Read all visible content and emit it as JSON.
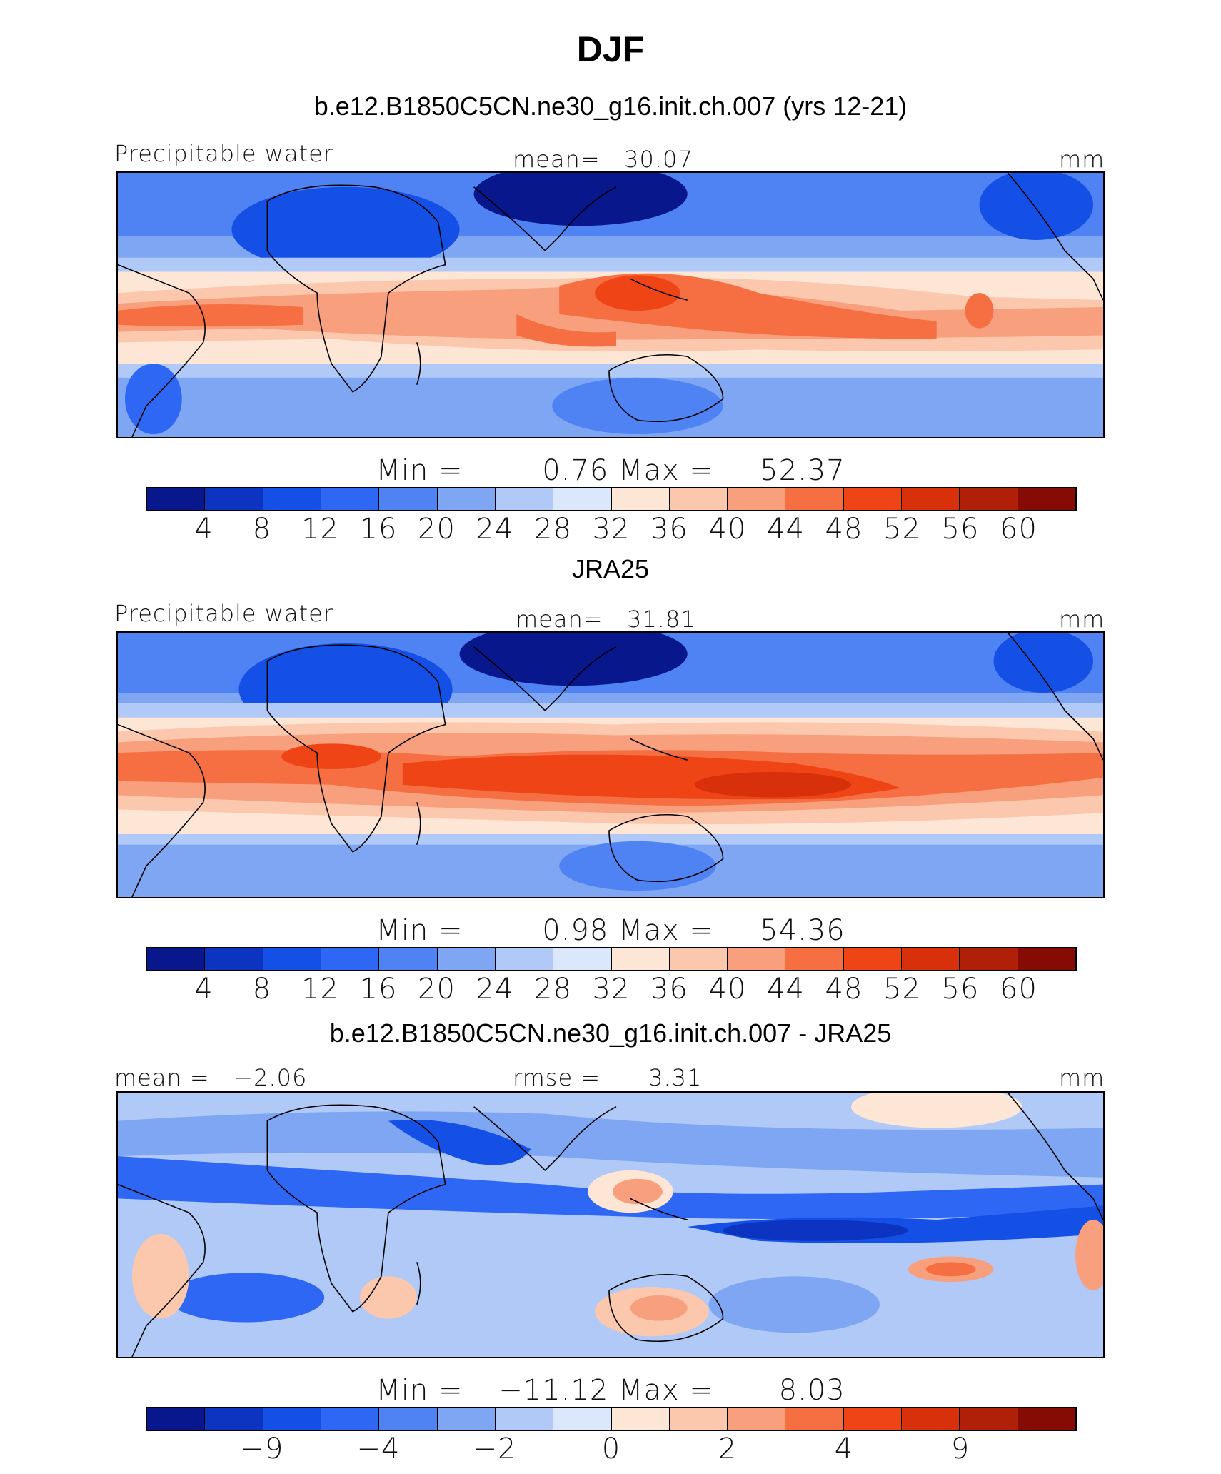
{
  "title": "DJF",
  "colors": [
    "#08188c",
    "#0c34c0",
    "#1550e6",
    "#2d67f4",
    "#4f82f2",
    "#7fa6f2",
    "#b0c9f6",
    "#dbe7fb",
    "#fde6d6",
    "#fbc8ad",
    "#f8a07e",
    "#f56f43",
    "#ef4415",
    "#d8300a",
    "#b01f08",
    "#870b05"
  ],
  "panels": [
    {
      "title": "b.e12.B1850C5CN.ne30_g16.init.ch.007 (yrs 12-21)",
      "left_label": "Precipitable water",
      "center_label": "mean=   30.07",
      "right_label": "mm",
      "min_label": "Min",
      "min_eq": "=",
      "min_value": "0.76",
      "max_label": "Max",
      "max_eq": "=",
      "max_value": "52.37",
      "ticks": [
        "4",
        "8",
        "12",
        "16",
        "20",
        "24",
        "28",
        "32",
        "36",
        "40",
        "44",
        "48",
        "52",
        "56",
        "60"
      ]
    },
    {
      "title": "JRA25",
      "left_label": "Precipitable water",
      "center_label": "mean=   31.81",
      "right_label": "mm",
      "min_label": "Min",
      "min_eq": "=",
      "min_value": "0.98",
      "max_label": "Max",
      "max_eq": "=",
      "max_value": "54.36",
      "ticks": [
        "4",
        "8",
        "12",
        "16",
        "20",
        "24",
        "28",
        "32",
        "36",
        "40",
        "44",
        "48",
        "52",
        "56",
        "60"
      ]
    },
    {
      "title": "b.e12.B1850C5CN.ne30_g16.init.ch.007 - JRA25",
      "left_label": "mean =   −2.06",
      "center_label": "rmse =      3.31",
      "right_label": "mm",
      "min_label": "Min",
      "min_eq": "=",
      "min_value": "−11.12",
      "max_label": "Max",
      "max_eq": "=",
      "max_value": "8.03",
      "ticks": [
        "−9",
        "−4",
        "−2",
        "0",
        "2",
        "4",
        "9"
      ]
    }
  ]
}
